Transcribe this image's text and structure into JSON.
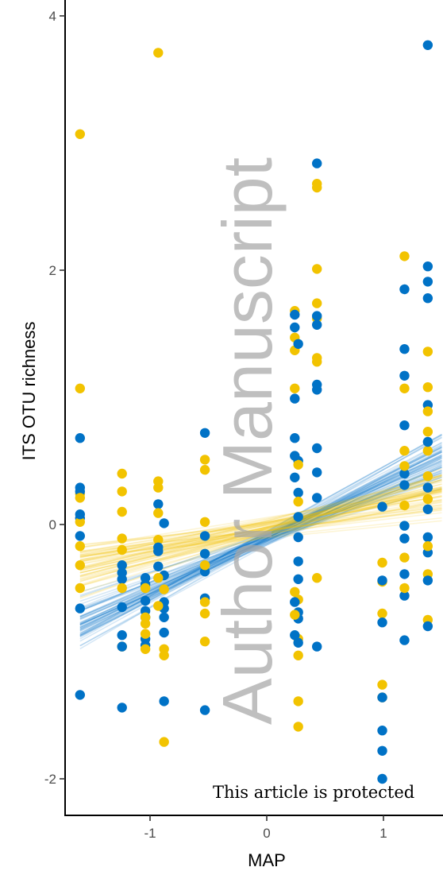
{
  "chart_data": {
    "type": "scatter",
    "xlabel": "MAP",
    "ylabel": "ITS OTU richness",
    "xlim": [
      -1.7,
      1.55
    ],
    "ylim": [
      -2.1,
      4.1
    ],
    "x_ticks": [
      -1,
      0,
      1
    ],
    "x_tick_labels": [
      "-1",
      "0",
      "1"
    ],
    "y_ticks": [
      -2,
      0,
      2,
      4
    ],
    "y_tick_labels": [
      "-2",
      "0",
      "2",
      "4"
    ],
    "grid": false,
    "legend": "none",
    "colors": {
      "blue": "#0072c6",
      "gold": "#f2c300"
    },
    "series": [
      {
        "color": "#0072c6",
        "posterior_lines": {
          "count": 60,
          "x_range": [
            -1.6,
            1.5
          ],
          "intercept_mean": -0.1,
          "intercept_sd": 0.03,
          "slope_mean": 0.42,
          "slope_sd": 0.06
        },
        "points": [
          [
            -1.6,
            0.68
          ],
          [
            -1.6,
            0.29
          ],
          [
            -1.6,
            0.26
          ],
          [
            -1.6,
            0.08
          ],
          [
            -1.6,
            0.05
          ],
          [
            -1.6,
            -0.09
          ],
          [
            -1.6,
            -0.66
          ],
          [
            -1.6,
            -1.34
          ],
          [
            -1.24,
            -0.32
          ],
          [
            -1.24,
            -0.38
          ],
          [
            -1.24,
            -0.43
          ],
          [
            -1.24,
            -0.65
          ],
          [
            -1.24,
            -0.87
          ],
          [
            -1.24,
            -0.96
          ],
          [
            -1.24,
            -1.44
          ],
          [
            -1.04,
            -0.42
          ],
          [
            -1.04,
            -0.47
          ],
          [
            -1.04,
            -0.6
          ],
          [
            -1.04,
            -0.68
          ],
          [
            -1.04,
            -0.73
          ],
          [
            -1.04,
            -0.9
          ],
          [
            -1.04,
            -0.95
          ],
          [
            -0.93,
            0.16
          ],
          [
            -0.93,
            -0.18
          ],
          [
            -0.93,
            -0.21
          ],
          [
            -0.93,
            -0.33
          ],
          [
            -0.88,
            0.01
          ],
          [
            -0.88,
            -0.4
          ],
          [
            -0.88,
            -0.61
          ],
          [
            -0.88,
            -0.66
          ],
          [
            -0.88,
            -0.73
          ],
          [
            -0.88,
            -0.85
          ],
          [
            -0.88,
            -1.39
          ],
          [
            -0.53,
            0.72
          ],
          [
            -0.53,
            -0.09
          ],
          [
            -0.53,
            -0.23
          ],
          [
            -0.53,
            -0.37
          ],
          [
            -0.53,
            -0.58
          ],
          [
            -0.53,
            -1.46
          ],
          [
            0.24,
            1.65
          ],
          [
            0.24,
            1.55
          ],
          [
            0.24,
            0.99
          ],
          [
            0.24,
            0.68
          ],
          [
            0.24,
            0.54
          ],
          [
            0.24,
            0.37
          ],
          [
            0.24,
            -0.61
          ],
          [
            0.24,
            -0.87
          ],
          [
            0.27,
            1.42
          ],
          [
            0.27,
            0.25
          ],
          [
            0.27,
            0.5
          ],
          [
            0.27,
            0.06
          ],
          [
            0.27,
            -0.1
          ],
          [
            0.27,
            -0.29
          ],
          [
            0.27,
            -0.43
          ],
          [
            0.27,
            -0.69
          ],
          [
            0.27,
            -0.74
          ],
          [
            0.27,
            -0.93
          ],
          [
            0.43,
            2.84
          ],
          [
            0.43,
            1.64
          ],
          [
            0.43,
            1.57
          ],
          [
            0.43,
            1.1
          ],
          [
            0.43,
            1.06
          ],
          [
            0.43,
            0.6
          ],
          [
            0.43,
            0.41
          ],
          [
            0.43,
            0.21
          ],
          [
            0.43,
            -0.96
          ],
          [
            0.99,
            0.14
          ],
          [
            0.99,
            -0.44
          ],
          [
            0.99,
            -0.77
          ],
          [
            0.99,
            -1.36
          ],
          [
            0.99,
            -1.62
          ],
          [
            0.99,
            -1.78
          ],
          [
            0.99,
            -2.0
          ],
          [
            1.18,
            1.85
          ],
          [
            1.18,
            1.38
          ],
          [
            1.18,
            1.17
          ],
          [
            1.18,
            0.78
          ],
          [
            1.18,
            0.4
          ],
          [
            1.18,
            0.31
          ],
          [
            1.18,
            -0.01
          ],
          [
            1.18,
            -0.11
          ],
          [
            1.18,
            -0.39
          ],
          [
            1.18,
            -0.56
          ],
          [
            1.18,
            -0.91
          ],
          [
            1.38,
            3.77
          ],
          [
            1.38,
            2.03
          ],
          [
            1.38,
            1.91
          ],
          [
            1.38,
            1.78
          ],
          [
            1.38,
            0.94
          ],
          [
            1.38,
            0.65
          ],
          [
            1.38,
            0.29
          ],
          [
            1.38,
            0.12
          ],
          [
            1.38,
            -0.1
          ],
          [
            1.38,
            -0.22
          ],
          [
            1.38,
            -0.44
          ],
          [
            1.38,
            -0.8
          ]
        ]
      },
      {
        "color": "#f2c300",
        "posterior_lines": {
          "count": 60,
          "x_range": [
            -1.6,
            1.5
          ],
          "intercept_mean": -0.03,
          "intercept_sd": 0.04,
          "slope_mean": 0.18,
          "slope_sd": 0.06
        },
        "points": [
          [
            -1.6,
            3.07
          ],
          [
            -1.6,
            1.07
          ],
          [
            -1.6,
            0.21
          ],
          [
            -1.6,
            0.24
          ],
          [
            -1.6,
            0.02
          ],
          [
            -1.6,
            -0.17
          ],
          [
            -1.6,
            -0.32
          ],
          [
            -1.6,
            -0.5
          ],
          [
            -1.24,
            0.4
          ],
          [
            -1.24,
            0.26
          ],
          [
            -1.24,
            0.1
          ],
          [
            -1.24,
            -0.11
          ],
          [
            -1.24,
            -0.2
          ],
          [
            -1.24,
            -0.5
          ],
          [
            -1.24,
            -0.96
          ],
          [
            -1.04,
            -0.5
          ],
          [
            -1.04,
            -0.73
          ],
          [
            -1.04,
            -0.78
          ],
          [
            -1.04,
            -0.86
          ],
          [
            -1.04,
            -0.98
          ],
          [
            -0.93,
            3.71
          ],
          [
            -0.93,
            0.34
          ],
          [
            -0.93,
            0.29
          ],
          [
            -0.93,
            0.09
          ],
          [
            -0.93,
            -0.12
          ],
          [
            -0.93,
            -0.42
          ],
          [
            -0.93,
            -0.64
          ],
          [
            -0.88,
            -0.51
          ],
          [
            -0.88,
            -0.98
          ],
          [
            -0.88,
            -1.03
          ],
          [
            -0.88,
            -1.71
          ],
          [
            -0.53,
            0.51
          ],
          [
            -0.53,
            0.43
          ],
          [
            -0.53,
            0.02
          ],
          [
            -0.53,
            -0.32
          ],
          [
            -0.53,
            -0.61
          ],
          [
            -0.53,
            -0.7
          ],
          [
            -0.53,
            -0.92
          ],
          [
            0.24,
            1.68
          ],
          [
            0.24,
            1.47
          ],
          [
            0.24,
            1.37
          ],
          [
            0.24,
            1.07
          ],
          [
            0.24,
            -0.53
          ],
          [
            0.24,
            -0.71
          ],
          [
            0.27,
            0.47
          ],
          [
            0.27,
            0.18
          ],
          [
            0.27,
            -0.59
          ],
          [
            0.27,
            -0.9
          ],
          [
            0.27,
            -1.03
          ],
          [
            0.27,
            -1.39
          ],
          [
            0.27,
            -1.59
          ],
          [
            0.43,
            2.68
          ],
          [
            0.43,
            2.65
          ],
          [
            0.43,
            2.01
          ],
          [
            0.43,
            1.74
          ],
          [
            0.43,
            1.62
          ],
          [
            0.43,
            1.31
          ],
          [
            0.43,
            1.28
          ],
          [
            0.43,
            -0.42
          ],
          [
            0.99,
            -0.3
          ],
          [
            0.99,
            -0.45
          ],
          [
            0.99,
            -0.7
          ],
          [
            0.99,
            -1.26
          ],
          [
            0.99,
            -1.36
          ],
          [
            1.18,
            2.11
          ],
          [
            1.18,
            1.07
          ],
          [
            1.18,
            0.58
          ],
          [
            1.18,
            0.46
          ],
          [
            1.18,
            0.15
          ],
          [
            1.18,
            -0.26
          ],
          [
            1.18,
            -0.5
          ],
          [
            1.38,
            1.36
          ],
          [
            1.38,
            1.08
          ],
          [
            1.38,
            0.89
          ],
          [
            1.38,
            0.73
          ],
          [
            1.38,
            0.58
          ],
          [
            1.38,
            0.38
          ],
          [
            1.38,
            0.2
          ],
          [
            1.38,
            -0.17
          ],
          [
            1.38,
            -0.39
          ],
          [
            1.38,
            -0.75
          ]
        ]
      }
    ]
  },
  "watermark": "Author Manuscript",
  "notice": "This article is protected"
}
